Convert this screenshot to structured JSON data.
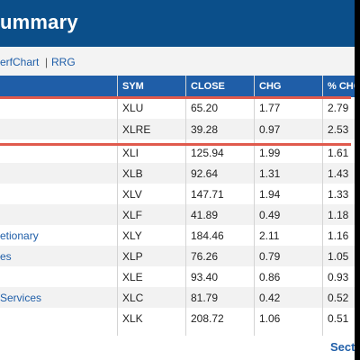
{
  "title": "ummary",
  "links": {
    "perfchart": "erfChart",
    "separator": "|",
    "rrg": "RRG"
  },
  "table": {
    "headers": [
      "SYM",
      "CLOSE",
      "CHG",
      "% CHG"
    ],
    "rows": [
      {
        "name": "",
        "sym": "XLU",
        "close": "65.20",
        "chg": "1.77",
        "pct": "2.79"
      },
      {
        "name": "",
        "sym": "XLRE",
        "close": "39.28",
        "chg": "0.97",
        "pct": "2.53"
      },
      {
        "name": "",
        "sym": "XLI",
        "close": "125.94",
        "chg": "1.99",
        "pct": "1.61"
      },
      {
        "name": "",
        "sym": "XLB",
        "close": "92.64",
        "chg": "1.31",
        "pct": "1.43"
      },
      {
        "name": "",
        "sym": "XLV",
        "close": "147.71",
        "chg": "1.94",
        "pct": "1.33"
      },
      {
        "name": "",
        "sym": "XLF",
        "close": "41.89",
        "chg": "0.49",
        "pct": "1.18"
      },
      {
        "name": "etionary",
        "sym": "XLY",
        "close": "184.46",
        "chg": "2.11",
        "pct": "1.16"
      },
      {
        "name": "es",
        "sym": "XLP",
        "close": "76.26",
        "chg": "0.79",
        "pct": "1.05"
      },
      {
        "name": "",
        "sym": "XLE",
        "close": "93.40",
        "chg": "0.86",
        "pct": "0.93"
      },
      {
        "name": "Services",
        "sym": "XLC",
        "close": "81.79",
        "chg": "0.42",
        "pct": "0.52"
      },
      {
        "name": "",
        "sym": "XLK",
        "close": "208.72",
        "chg": "1.06",
        "pct": "0.51"
      }
    ]
  },
  "footer": {
    "link": "Secto"
  },
  "colors": {
    "header_bg": "#1f5ea8",
    "highlight": "#e05a4d",
    "link": "#1f5ea8"
  }
}
